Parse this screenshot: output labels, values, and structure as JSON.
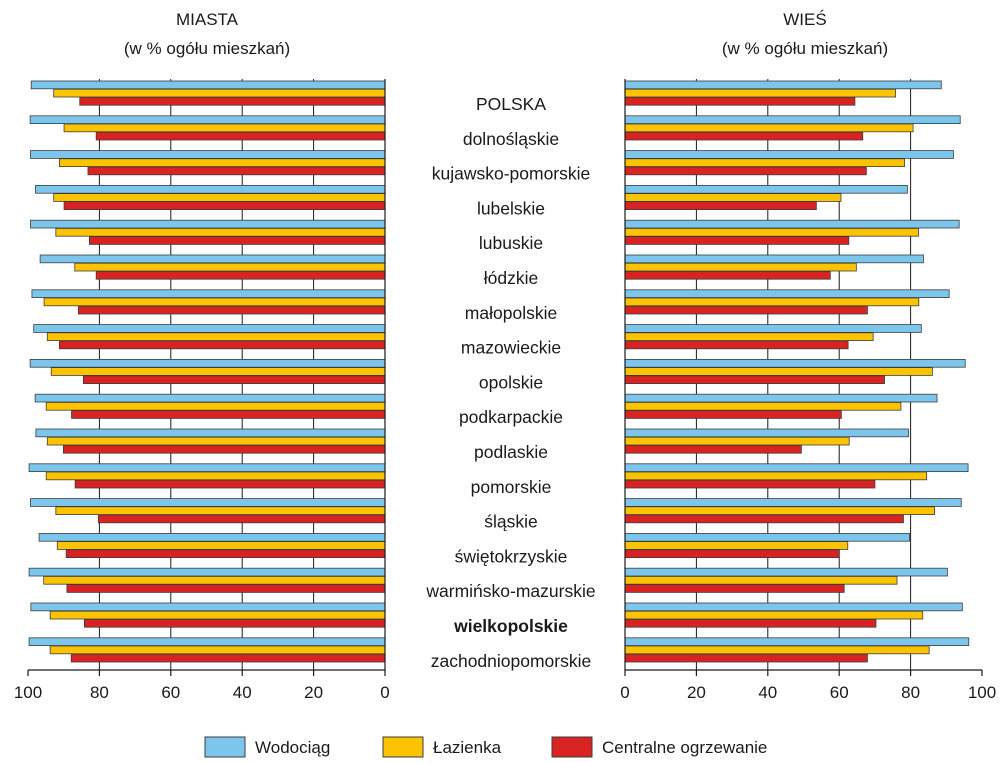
{
  "chart_data": {
    "type": "bar",
    "orientation": "horizontal",
    "categories": [
      "POLSKA",
      "dolnośląskie",
      "kujawsko-pomorskie",
      "lubelskie",
      "lubuskie",
      "łódzkie",
      "małopolskie",
      "mazowieckie",
      "opolskie",
      "podkarpackie",
      "podlaskie",
      "pomorskie",
      "śląskie",
      "świętokrzyskie",
      "warmińsko-mazurskie",
      "wielkopolskie",
      "zachodniopomorskie"
    ],
    "highlighted_category": "wielkopolskie",
    "panels": [
      {
        "title_line1": "MIASTA",
        "title_line2": "(w % ogółu mieszkań)",
        "xlim": [
          0,
          100
        ],
        "x_reversed": true,
        "ticks": [
          "100",
          "80",
          "60",
          "40",
          "20",
          "0"
        ],
        "tick_values": [
          100,
          80,
          60,
          40,
          20,
          0
        ],
        "grid": true,
        "series": [
          {
            "name": "Wodociąg",
            "values": [
              99.1,
              99.4,
              99.3,
              97.9,
              99.3,
              96.6,
              98.9,
              98.4,
              99.4,
              98.0,
              97.8,
              99.7,
              99.3,
              96.9,
              99.7,
              99.2,
              99.7
            ]
          },
          {
            "name": "Łazienka",
            "values": [
              92.8,
              89.9,
              91.2,
              92.8,
              92.2,
              86.9,
              95.5,
              94.6,
              93.5,
              94.9,
              94.6,
              94.9,
              92.2,
              91.8,
              95.6,
              93.8,
              93.8
            ]
          },
          {
            "name": "Centralne ogrzewanie",
            "values": [
              85.5,
              80.9,
              83.2,
              89.9,
              82.8,
              80.9,
              85.9,
              91.2,
              84.5,
              87.8,
              90.1,
              86.8,
              80.3,
              89.3,
              89.1,
              84.2,
              87.9
            ]
          }
        ]
      },
      {
        "title_line1": "WIEŚ",
        "title_line2": "(w % ogółu mieszkań)",
        "xlim": [
          0,
          100
        ],
        "x_reversed": false,
        "ticks": [
          "0",
          "20",
          "40",
          "60",
          "80",
          "100"
        ],
        "tick_values": [
          0,
          20,
          40,
          60,
          80,
          100
        ],
        "grid": true,
        "series": [
          {
            "name": "Wodociąg",
            "values": [
              88.6,
              93.9,
              92.0,
              79.1,
              93.6,
              83.6,
              90.8,
              83.0,
              95.3,
              87.4,
              79.4,
              96.1,
              94.2,
              79.7,
              90.3,
              94.5,
              96.3
            ]
          },
          {
            "name": "Łazienka",
            "values": [
              75.8,
              80.7,
              78.3,
              60.5,
              82.2,
              64.8,
              82.3,
              69.5,
              86.1,
              77.3,
              62.8,
              84.5,
              86.7,
              62.4,
              76.2,
              83.4,
              85.2
            ]
          },
          {
            "name": "Centralne ogrzewanie",
            "values": [
              64.4,
              66.6,
              67.6,
              53.6,
              62.7,
              57.5,
              67.9,
              62.5,
              72.7,
              60.6,
              49.4,
              70.0,
              78.0,
              60.0,
              61.4,
              70.3,
              67.9
            ]
          }
        ]
      }
    ],
    "legend": {
      "position": "bottom",
      "items": [
        {
          "label": "Wodociąg",
          "color": "#7cc6ee"
        },
        {
          "label": "Łazienka",
          "color": "#fcc400"
        },
        {
          "label": "Centralne ogrzewanie",
          "color": "#d92323"
        }
      ]
    },
    "colors": {
      "bar_stroke": "#3c3c3c",
      "grid": "#1a1a1a"
    }
  }
}
